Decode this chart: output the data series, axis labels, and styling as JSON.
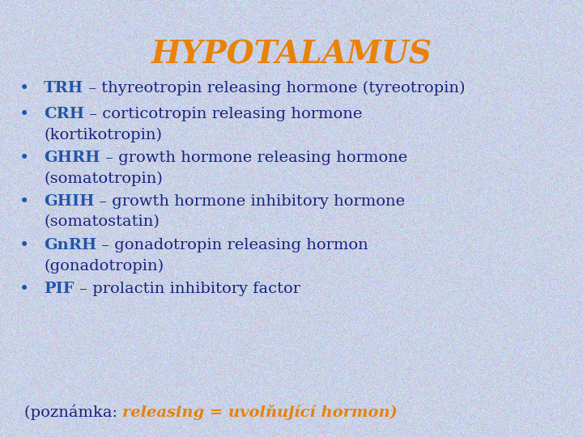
{
  "title": "HYPOTALAMUS",
  "title_color": "#E8820A",
  "title_fontsize": 28,
  "title_style": "italic",
  "title_weight": "bold",
  "title_font": "DejaVu Serif",
  "bullet_abbr_color": "#2255AA",
  "bullet_text_color": "#1A237E",
  "bullet_fontsize": 14,
  "bullet_font": "DejaVu Serif",
  "footer_normal_color": "#1A237E",
  "footer_italic_color": "#E8820A",
  "footer_fontsize": 14,
  "bullets": [
    {
      "abbr": "TRH",
      "rest": " – thyreotropin releasing hormone (tyreotropin)",
      "wrap": null
    },
    {
      "abbr": "CRH",
      "rest": " – corticotropin releasing hormone",
      "wrap": "(kortikotropin)"
    },
    {
      "abbr": "GHRH",
      "rest": " – growth hormone releasing hormone",
      "wrap": "(somatotropin)"
    },
    {
      "abbr": "GHIH",
      "rest": " – growth hormone inhibitory hormone",
      "wrap": "(somatostatin)"
    },
    {
      "abbr": "GnRH",
      "rest": " – gonadotropin releasing hormon",
      "wrap": "(gonadotropin)"
    },
    {
      "abbr": "PIF",
      "rest": " – prolactin inhibitory factor",
      "wrap": null
    }
  ],
  "footer_normal": "(poznámka: ",
  "footer_italic": "releasing = uvolňující hormon)",
  "figsize": [
    7.2,
    5.4
  ],
  "dpi": 100
}
